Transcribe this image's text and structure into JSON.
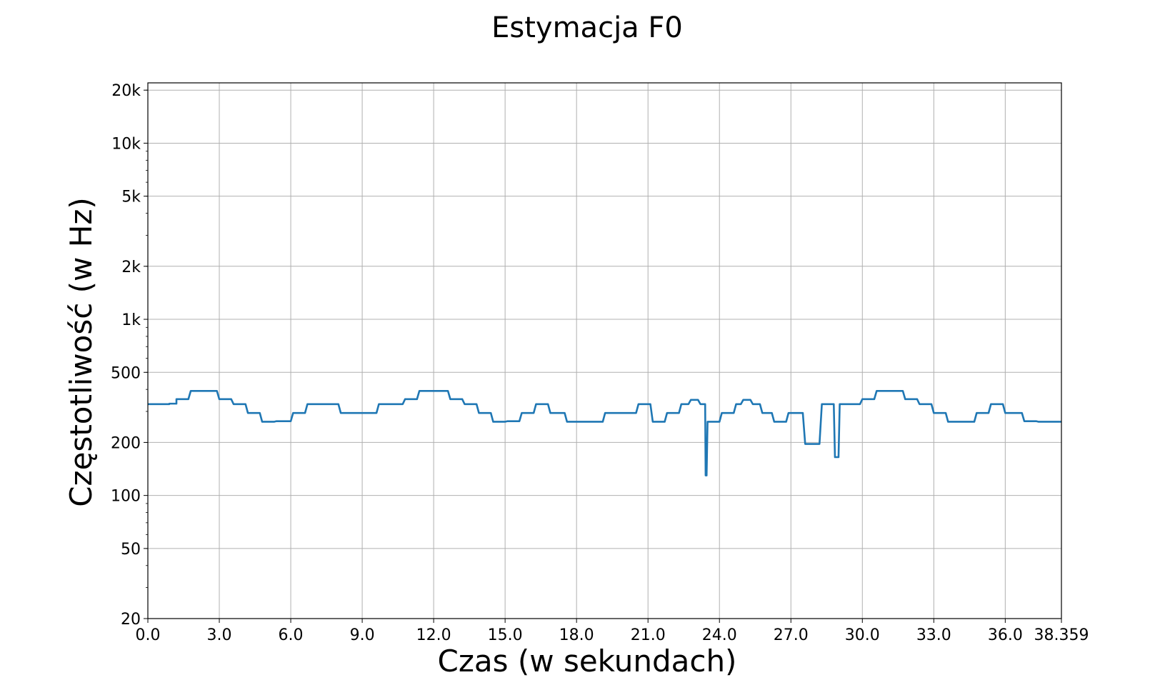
{
  "chart_data": {
    "type": "line",
    "title": "Estymacja F0",
    "xlabel": "Czas (w sekundach)",
    "ylabel": "Częstotliwość (w Hz)",
    "xlim": [
      0,
      38.359
    ],
    "ylim": [
      20,
      22000
    ],
    "yscale": "log",
    "grid": true,
    "x_ticks": [
      {
        "value": 0,
        "label": "0.0"
      },
      {
        "value": 3,
        "label": "3.0"
      },
      {
        "value": 6,
        "label": "6.0"
      },
      {
        "value": 9,
        "label": "9.0"
      },
      {
        "value": 12,
        "label": "12.0"
      },
      {
        "value": 15,
        "label": "15.0"
      },
      {
        "value": 18,
        "label": "18.0"
      },
      {
        "value": 21,
        "label": "21.0"
      },
      {
        "value": 24,
        "label": "24.0"
      },
      {
        "value": 27,
        "label": "27.0"
      },
      {
        "value": 30,
        "label": "30.0"
      },
      {
        "value": 33,
        "label": "33.0"
      },
      {
        "value": 36,
        "label": "36.0"
      },
      {
        "value": 38.359,
        "label": "38.359"
      }
    ],
    "y_ticks": [
      {
        "value": 20,
        "label": "20"
      },
      {
        "value": 50,
        "label": "50"
      },
      {
        "value": 100,
        "label": "100"
      },
      {
        "value": 200,
        "label": "200"
      },
      {
        "value": 500,
        "label": "500"
      },
      {
        "value": 1000,
        "label": "1k"
      },
      {
        "value": 2000,
        "label": "2k"
      },
      {
        "value": 5000,
        "label": "5k"
      },
      {
        "value": 10000,
        "label": "10k"
      },
      {
        "value": 20000,
        "label": "20k"
      }
    ],
    "series": [
      {
        "color": "#1f77b4",
        "points": [
          [
            0,
            330
          ],
          [
            0.9,
            330
          ],
          [
            0.9,
            332
          ],
          [
            1.2,
            332
          ],
          [
            1.2,
            352
          ],
          [
            1.7,
            352
          ],
          [
            1.8,
            392
          ],
          [
            2.9,
            392
          ],
          [
            3.0,
            352
          ],
          [
            3.5,
            352
          ],
          [
            3.6,
            330
          ],
          [
            4.1,
            330
          ],
          [
            4.2,
            294
          ],
          [
            4.7,
            294
          ],
          [
            4.8,
            262
          ],
          [
            5.3,
            262
          ],
          [
            5.4,
            264
          ],
          [
            6.0,
            264
          ],
          [
            6.1,
            294
          ],
          [
            6.6,
            294
          ],
          [
            6.7,
            330
          ],
          [
            8.0,
            330
          ],
          [
            8.1,
            294
          ],
          [
            9.6,
            294
          ],
          [
            9.7,
            330
          ],
          [
            10.7,
            330
          ],
          [
            10.8,
            352
          ],
          [
            11.3,
            352
          ],
          [
            11.4,
            392
          ],
          [
            12.6,
            392
          ],
          [
            12.7,
            352
          ],
          [
            13.2,
            352
          ],
          [
            13.3,
            330
          ],
          [
            13.8,
            330
          ],
          [
            13.9,
            294
          ],
          [
            14.4,
            294
          ],
          [
            14.5,
            262
          ],
          [
            15.0,
            262
          ],
          [
            15.1,
            264
          ],
          [
            15.6,
            264
          ],
          [
            15.7,
            294
          ],
          [
            16.2,
            294
          ],
          [
            16.3,
            330
          ],
          [
            16.8,
            330
          ],
          [
            16.9,
            294
          ],
          [
            17.5,
            294
          ],
          [
            17.6,
            262
          ],
          [
            19.1,
            262
          ],
          [
            19.2,
            294
          ],
          [
            20.5,
            294
          ],
          [
            20.6,
            330
          ],
          [
            21.1,
            330
          ],
          [
            21.2,
            262
          ],
          [
            21.7,
            262
          ],
          [
            21.8,
            294
          ],
          [
            22.3,
            294
          ],
          [
            22.4,
            330
          ],
          [
            22.7,
            330
          ],
          [
            22.8,
            349
          ],
          [
            23.1,
            349
          ],
          [
            23.2,
            330
          ],
          [
            23.4,
            330
          ],
          [
            23.42,
            130
          ],
          [
            23.46,
            130
          ],
          [
            23.5,
            262
          ],
          [
            24.0,
            262
          ],
          [
            24.1,
            294
          ],
          [
            24.6,
            294
          ],
          [
            24.7,
            330
          ],
          [
            24.9,
            330
          ],
          [
            25.0,
            349
          ],
          [
            25.3,
            349
          ],
          [
            25.4,
            330
          ],
          [
            25.7,
            330
          ],
          [
            25.8,
            294
          ],
          [
            26.2,
            294
          ],
          [
            26.3,
            262
          ],
          [
            26.8,
            262
          ],
          [
            26.9,
            294
          ],
          [
            27.5,
            294
          ],
          [
            27.6,
            196
          ],
          [
            28.2,
            196
          ],
          [
            28.3,
            330
          ],
          [
            28.8,
            330
          ],
          [
            28.85,
            165
          ],
          [
            29.0,
            165
          ],
          [
            29.05,
            330
          ],
          [
            29.9,
            330
          ],
          [
            30.0,
            352
          ],
          [
            30.5,
            352
          ],
          [
            30.6,
            392
          ],
          [
            31.7,
            392
          ],
          [
            31.8,
            352
          ],
          [
            32.3,
            352
          ],
          [
            32.4,
            330
          ],
          [
            32.9,
            330
          ],
          [
            33.0,
            294
          ],
          [
            33.5,
            294
          ],
          [
            33.6,
            262
          ],
          [
            34.7,
            262
          ],
          [
            34.8,
            294
          ],
          [
            35.3,
            294
          ],
          [
            35.4,
            330
          ],
          [
            35.9,
            330
          ],
          [
            36.0,
            294
          ],
          [
            36.7,
            294
          ],
          [
            36.8,
            264
          ],
          [
            37.3,
            264
          ],
          [
            37.4,
            262
          ],
          [
            38.359,
            262
          ]
        ]
      }
    ]
  }
}
